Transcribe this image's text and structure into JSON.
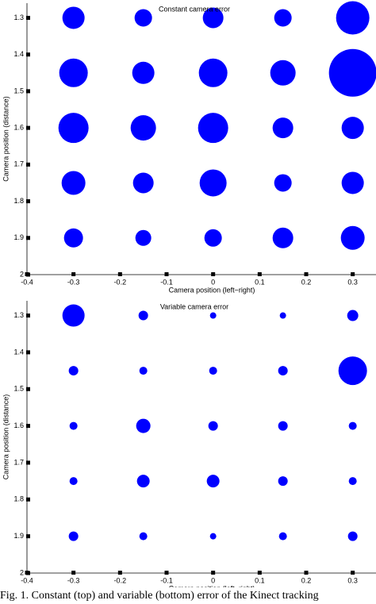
{
  "chart_data": [
    {
      "type": "scatter",
      "title": "Constant camera error",
      "xlabel": "Camera position (left−right)",
      "ylabel": "Camera position (distance)",
      "color": "#0000ff",
      "x": [
        -0.3,
        -0.15,
        0,
        0.15,
        0.3,
        -0.3,
        -0.15,
        0,
        0.15,
        0.3,
        -0.3,
        -0.15,
        0,
        0.15,
        0.3,
        -0.3,
        -0.15,
        0,
        0.15,
        0.3,
        -0.3,
        -0.15,
        0,
        0.15,
        0.3
      ],
      "y": [
        1.3,
        1.3,
        1.3,
        1.3,
        1.3,
        1.45,
        1.45,
        1.45,
        1.45,
        1.45,
        1.6,
        1.6,
        1.6,
        1.6,
        1.6,
        1.75,
        1.75,
        1.75,
        1.75,
        1.75,
        1.9,
        1.9,
        1.9,
        1.9,
        1.9
      ],
      "sizes": [
        14,
        11,
        13,
        11,
        21,
        18,
        14,
        18,
        16,
        30,
        19,
        16,
        19,
        13,
        14,
        15,
        13,
        17,
        11,
        14,
        12,
        10,
        11,
        13,
        15
      ],
      "xlim": [
        -0.4,
        0.35
      ],
      "xticks": [
        -0.4,
        -0.3,
        -0.2,
        -0.1,
        0,
        0.1,
        0.2,
        0.3
      ],
      "ylim": [
        1.26,
        2
      ],
      "yticks": [
        1.3,
        1.4,
        1.5,
        1.6,
        1.7,
        1.8,
        1.9,
        2
      ]
    },
    {
      "type": "scatter",
      "title": "Variable camera error",
      "xlabel": "Camera position (left−right)",
      "ylabel": "Camera position (distance)",
      "color": "#0000ff",
      "x": [
        -0.3,
        -0.15,
        0,
        0.15,
        0.3,
        -0.3,
        -0.15,
        0,
        0.15,
        0.3,
        -0.3,
        -0.15,
        0,
        0.15,
        0.3,
        -0.3,
        -0.15,
        0,
        0.15,
        0.3,
        -0.3,
        -0.15,
        0,
        0.15,
        0.3
      ],
      "y": [
        1.3,
        1.3,
        1.3,
        1.3,
        1.3,
        1.45,
        1.45,
        1.45,
        1.45,
        1.45,
        1.6,
        1.6,
        1.6,
        1.6,
        1.6,
        1.75,
        1.75,
        1.75,
        1.75,
        1.75,
        1.9,
        1.9,
        1.9,
        1.9,
        1.9
      ],
      "sizes": [
        14,
        6,
        4,
        4,
        7,
        6,
        5,
        5,
        6,
        18,
        5,
        9,
        6,
        6,
        5,
        5,
        8,
        8,
        6,
        5,
        6,
        5,
        4,
        5,
        6
      ],
      "xlim": [
        -0.4,
        0.35
      ],
      "xticks": [
        -0.4,
        -0.3,
        -0.2,
        -0.1,
        0,
        0.1,
        0.2,
        0.3
      ],
      "ylim": [
        1.26,
        2
      ],
      "yticks": [
        1.3,
        1.4,
        1.5,
        1.6,
        1.7,
        1.8,
        1.9,
        2
      ]
    }
  ],
  "caption": "Fig. 1. Constant (top) and variable (bottom) error of the Kinect tracking"
}
